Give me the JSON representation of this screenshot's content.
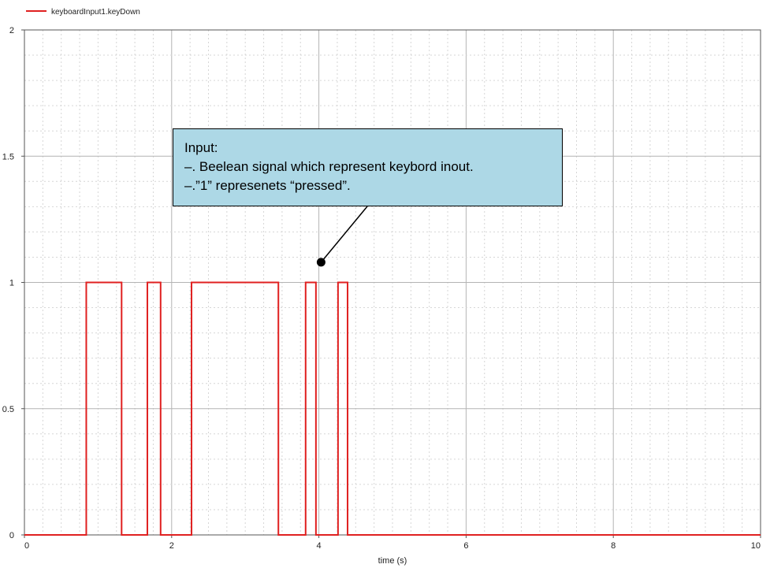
{
  "chart_data": {
    "type": "line",
    "title": "",
    "xlabel": "time (s)",
    "ylabel": "",
    "xlim": [
      0,
      10
    ],
    "ylim": [
      0,
      2
    ],
    "grid": true,
    "legend_position": "top-left",
    "x_ticks": [
      "0",
      "2",
      "4",
      "6",
      "8",
      "10"
    ],
    "y_ticks": [
      "0",
      "0.5",
      "1",
      "1.5",
      "2"
    ],
    "series": [
      {
        "name": "keyboardInput1.keyDown",
        "color": "#e02020",
        "step": true,
        "x": [
          0,
          0.84,
          1.32,
          1.67,
          1.85,
          2.27,
          3.45,
          3.82,
          3.96,
          4.26,
          4.39,
          10
        ],
        "y": [
          0,
          1,
          0,
          1,
          0,
          1,
          0,
          1,
          0,
          1,
          0,
          0
        ]
      }
    ],
    "annotation": {
      "lines": [
        "Input:",
        "–. Beelean signal which represent keybord inout.",
        "–.”1” represenets “pressed”."
      ],
      "target": {
        "x": 4.03,
        "y": 1.08
      }
    }
  }
}
